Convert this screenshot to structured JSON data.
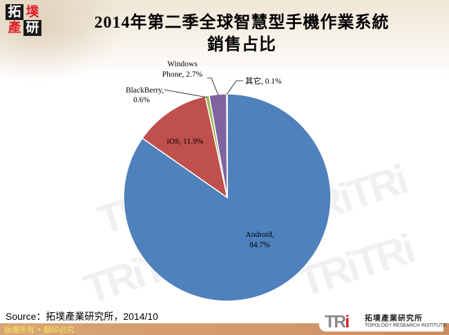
{
  "header": {
    "logo_chars": [
      "拓",
      "墣",
      "產",
      "研"
    ],
    "title_line1": "2014年第二季全球智慧型手機作業系統",
    "title_line2": "銷售占比"
  },
  "chart_data": {
    "type": "pie",
    "title": "2014年第二季全球智慧型手機作業系統銷售占比",
    "start_angle_deg": 0,
    "direction": "clockwise",
    "slices": [
      {
        "name": "Android",
        "value": 84.7,
        "label": "Android,",
        "label2": "84.7%",
        "color": "#4f81bd"
      },
      {
        "name": "iOS",
        "value": 11.9,
        "label": "iOS, 11.9%",
        "label2": "",
        "color": "#c0504d"
      },
      {
        "name": "BlackBerry",
        "value": 0.6,
        "label": "BlackBerry,",
        "label2": "0.6%",
        "color": "#9bbb59"
      },
      {
        "name": "Windows Phone",
        "value": 2.7,
        "label": "Windows",
        "label2": "Phone, 2.7%",
        "color": "#8064a2"
      },
      {
        "name": "其它",
        "value": 0.1,
        "label": "其它, 0.1%",
        "label2": "",
        "color": "#4bacc6"
      }
    ],
    "legend": "none (data labels)"
  },
  "source": "Source：拓墣產業研究所，2014/10",
  "footer": {
    "copyright": "版權所有 • 翻印必究",
    "brand_logo": "TRi",
    "brand_cn": "拓墣產業研究所",
    "brand_en": "TOPOLOGY RESEARCH INSTITUTE"
  }
}
